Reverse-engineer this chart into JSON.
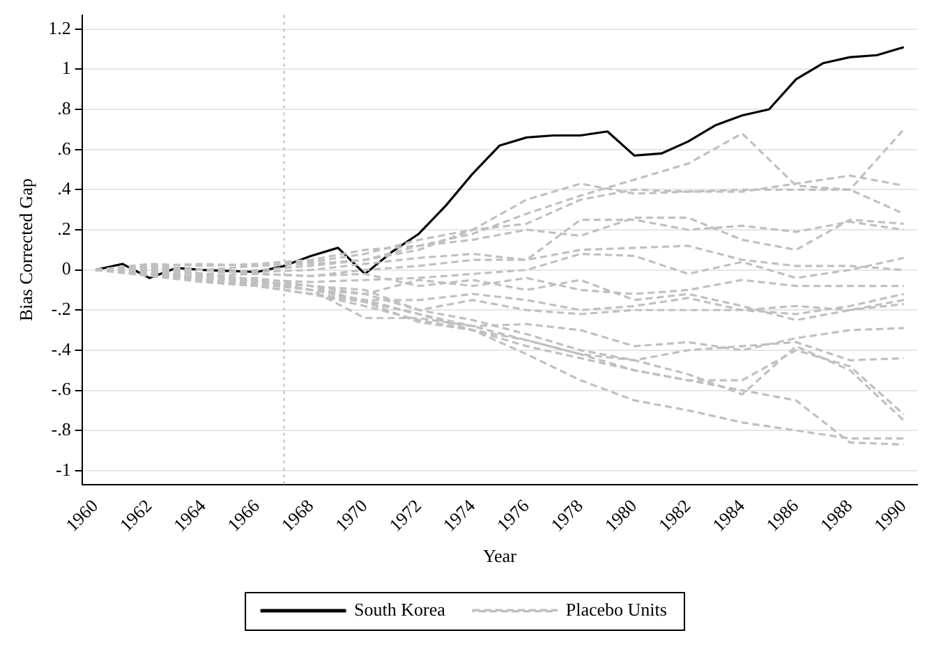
{
  "chart_data": {
    "type": "line",
    "xlabel": "Year",
    "ylabel": "Bias Corrected Gap",
    "xlim": [
      1959.5,
      1990.5
    ],
    "xticks": [
      1960,
      1962,
      1964,
      1966,
      1968,
      1970,
      1972,
      1974,
      1976,
      1978,
      1980,
      1982,
      1984,
      1986,
      1988,
      1990
    ],
    "ylim": [
      -1.07,
      1.27
    ],
    "yticks": [
      {
        "value": -1,
        "label": "-1"
      },
      {
        "value": -0.8,
        "label": "-.8"
      },
      {
        "value": -0.6,
        "label": "-.6"
      },
      {
        "value": -0.4,
        "label": "-.4"
      },
      {
        "value": -0.2,
        "label": "-.2"
      },
      {
        "value": 0,
        "label": "0"
      },
      {
        "value": 0.2,
        "label": ".2"
      },
      {
        "value": 0.4,
        "label": ".4"
      },
      {
        "value": 0.6,
        "label": ".6"
      },
      {
        "value": 0.8,
        "label": ".8"
      },
      {
        "value": 1,
        "label": "1"
      },
      {
        "value": 1.2,
        "label": "1.2"
      }
    ],
    "grid": "y",
    "legend": "bottom",
    "marker": "none",
    "ref_lines": [
      {
        "axis": "x",
        "value": 1967,
        "label": null,
        "color": "#bbbbbb",
        "line_style": "dotted"
      }
    ],
    "series": [
      {
        "name": "South Korea",
        "color": "#000000",
        "line_style": "solid",
        "x": [
          1960,
          1961,
          1962,
          1963,
          1964,
          1965,
          1966,
          1967,
          1968,
          1969,
          1970,
          1971,
          1972,
          1973,
          1974,
          1975,
          1976,
          1977,
          1978,
          1979,
          1980,
          1981,
          1982,
          1983,
          1984,
          1985,
          1986,
          1987,
          1988,
          1989,
          1990
        ],
        "values": [
          0,
          0.03,
          -0.04,
          0.01,
          0,
          -0.005,
          -0.01,
          0.02,
          0.07,
          0.11,
          -0.02,
          0.09,
          0.18,
          0.32,
          0.48,
          0.62,
          0.66,
          0.67,
          0.67,
          0.69,
          0.57,
          0.58,
          0.64,
          0.72,
          0.77,
          0.8,
          0.95,
          1.03,
          1.06,
          1.07,
          1.11
        ]
      },
      {
        "name": "Placebo Units",
        "color": "#c0c0c0",
        "line_style": "dashed",
        "x": [
          1960,
          1962,
          1964,
          1966,
          1968,
          1970,
          1972,
          1974,
          1976,
          1978,
          1980,
          1982,
          1984,
          1986,
          1988,
          1990
        ],
        "values": [
          0,
          0.03,
          0.02,
          0.03,
          0.05,
          0.1,
          0.12,
          0.18,
          0.28,
          0.37,
          0.45,
          0.53,
          0.68,
          0.42,
          0.4,
          0.7
        ]
      },
      {
        "color": "#c0c0c0",
        "line_style": "dashed",
        "x": [
          1960,
          1962,
          1964,
          1966,
          1968,
          1970,
          1972,
          1974,
          1976,
          1978,
          1980,
          1982,
          1984,
          1986,
          1988,
          1990
        ],
        "values": [
          0,
          0.02,
          0.03,
          0.02,
          0.04,
          0.08,
          0.15,
          0.2,
          0.35,
          0.43,
          0.38,
          0.39,
          0.39,
          0.43,
          0.47,
          0.42
        ]
      },
      {
        "color": "#c0c0c0",
        "line_style": "dashed",
        "x": [
          1960,
          1962,
          1964,
          1966,
          1968,
          1970,
          1972,
          1974,
          1976,
          1978,
          1980,
          1982,
          1984,
          1986,
          1988,
          1990
        ],
        "values": [
          0,
          0.01,
          0,
          0.02,
          0.03,
          0.05,
          0.1,
          0.2,
          0.23,
          0.35,
          0.4,
          0.39,
          0.4,
          0.4,
          0.4,
          0.28
        ]
      },
      {
        "color": "#c0c0c0",
        "line_style": "dashed",
        "x": [
          1960,
          1962,
          1964,
          1966,
          1968,
          1970,
          1972,
          1974,
          1976,
          1978,
          1980,
          1982,
          1984,
          1986,
          1988,
          1990
        ],
        "values": [
          0,
          0,
          -0.02,
          0,
          0.02,
          0.05,
          0.12,
          0.15,
          0.2,
          0.17,
          0.26,
          0.26,
          0.15,
          0.1,
          0.25,
          0.23
        ]
      },
      {
        "color": "#c0c0c0",
        "line_style": "dashed",
        "x": [
          1960,
          1962,
          1964,
          1966,
          1968,
          1970,
          1972,
          1974,
          1976,
          1978,
          1980,
          1982,
          1984,
          1986,
          1988,
          1990
        ],
        "values": [
          0,
          0.02,
          0,
          -0.01,
          0,
          0.03,
          0.06,
          0.08,
          0.05,
          0.25,
          0.25,
          0.2,
          0.22,
          0.19,
          0.24,
          0.2
        ]
      },
      {
        "color": "#c0c0c0",
        "line_style": "dashed",
        "x": [
          1960,
          1962,
          1964,
          1966,
          1968,
          1970,
          1972,
          1974,
          1976,
          1978,
          1980,
          1982,
          1984,
          1986,
          1988,
          1990
        ],
        "values": [
          0,
          -0.01,
          -0.03,
          -0.02,
          -0.03,
          0,
          0.02,
          0.05,
          0.05,
          0.1,
          0.11,
          0.12,
          0.05,
          0.02,
          0.02,
          0
        ]
      },
      {
        "color": "#c0c0c0",
        "line_style": "dashed",
        "x": [
          1960,
          1962,
          1964,
          1966,
          1968,
          1970,
          1972,
          1974,
          1976,
          1978,
          1980,
          1982,
          1984,
          1986,
          1988,
          1990
        ],
        "values": [
          0,
          0.01,
          -0.02,
          -0.05,
          -0.06,
          -0.05,
          -0.04,
          -0.02,
          0,
          0.08,
          0.07,
          -0.02,
          0.04,
          -0.04,
          0,
          0.06
        ]
      },
      {
        "color": "#c0c0c0",
        "line_style": "dashed",
        "x": [
          1960,
          1962,
          1964,
          1966,
          1968,
          1970,
          1972,
          1974,
          1976,
          1978,
          1980,
          1982,
          1984,
          1986,
          1988,
          1990
        ],
        "values": [
          0,
          -0.02,
          -0.03,
          -0.06,
          -0.1,
          -0.12,
          -0.05,
          -0.08,
          -0.04,
          -0.1,
          -0.12,
          -0.1,
          -0.05,
          -0.08,
          -0.08,
          -0.08
        ]
      },
      {
        "color": "#c0c0c0",
        "line_style": "dashed",
        "x": [
          1960,
          1962,
          1964,
          1966,
          1968,
          1970,
          1972,
          1974,
          1976,
          1978,
          1980,
          1982,
          1984,
          1986,
          1988,
          1990
        ],
        "values": [
          0,
          0,
          -0.05,
          -0.08,
          -0.12,
          -0.15,
          -0.15,
          -0.12,
          -0.15,
          -0.2,
          -0.18,
          -0.14,
          -0.2,
          -0.22,
          -0.18,
          -0.12
        ]
      },
      {
        "color": "#c0c0c0",
        "line_style": "dashed",
        "x": [
          1960,
          1962,
          1964,
          1966,
          1968,
          1970,
          1972,
          1974,
          1976,
          1978,
          1980,
          1982,
          1984,
          1986,
          1988,
          1990
        ],
        "values": [
          0,
          -0.02,
          -0.05,
          -0.04,
          -0.08,
          -0.1,
          -0.2,
          -0.15,
          -0.2,
          -0.22,
          -0.2,
          -0.2,
          -0.2,
          -0.18,
          -0.2,
          -0.17
        ]
      },
      {
        "color": "#c0c0c0",
        "line_style": "dashed",
        "x": [
          1960,
          1962,
          1964,
          1966,
          1968,
          1970,
          1972,
          1974,
          1976,
          1978,
          1980,
          1982,
          1984,
          1986,
          1988,
          1990
        ],
        "values": [
          0,
          -0.01,
          -0.04,
          -0.06,
          -0.08,
          -0.16,
          -0.22,
          -0.28,
          -0.27,
          -0.3,
          -0.38,
          -0.36,
          -0.4,
          -0.34,
          -0.3,
          -0.29
        ]
      },
      {
        "color": "#c0c0c0",
        "line_style": "dashed",
        "x": [
          1960,
          1962,
          1964,
          1966,
          1968,
          1970,
          1972,
          1974,
          1976,
          1978,
          1980,
          1982,
          1984,
          1986,
          1988,
          1990
        ],
        "values": [
          0,
          0.02,
          -0.02,
          -0.05,
          -0.1,
          -0.24,
          -0.24,
          -0.28,
          -0.35,
          -0.42,
          -0.45,
          -0.4,
          -0.38,
          -0.36,
          -0.45,
          -0.44
        ]
      },
      {
        "color": "#c0c0c0",
        "line_style": "dashed",
        "x": [
          1960,
          1962,
          1964,
          1966,
          1968,
          1970,
          1972,
          1974,
          1976,
          1978,
          1980,
          1982,
          1984,
          1986,
          1988,
          1990
        ],
        "values": [
          0,
          -0.03,
          -0.06,
          -0.08,
          -0.12,
          -0.18,
          -0.25,
          -0.3,
          -0.38,
          -0.44,
          -0.5,
          -0.55,
          -0.55,
          -0.4,
          -0.48,
          -0.72
        ]
      },
      {
        "color": "#c0c0c0",
        "line_style": "dashed",
        "x": [
          1960,
          1962,
          1964,
          1966,
          1968,
          1970,
          1972,
          1974,
          1976,
          1978,
          1980,
          1982,
          1984,
          1986,
          1988,
          1990
        ],
        "values": [
          0,
          -0.02,
          -0.04,
          -0.06,
          -0.08,
          -0.12,
          -0.2,
          -0.25,
          -0.32,
          -0.4,
          -0.45,
          -0.52,
          -0.62,
          -0.38,
          -0.5,
          -0.75
        ]
      },
      {
        "color": "#c0c0c0",
        "line_style": "dashed",
        "x": [
          1960,
          1962,
          1964,
          1966,
          1968,
          1970,
          1972,
          1974,
          1976,
          1978,
          1980,
          1982,
          1984,
          1986,
          1988,
          1990
        ],
        "values": [
          0,
          -0.01,
          -0.05,
          -0.07,
          -0.1,
          -0.15,
          -0.22,
          -0.3,
          -0.42,
          -0.55,
          -0.65,
          -0.7,
          -0.76,
          -0.8,
          -0.84,
          -0.84
        ]
      },
      {
        "color": "#c0c0c0",
        "line_style": "dashed",
        "x": [
          1960,
          1962,
          1964,
          1966,
          1968,
          1970,
          1972,
          1974,
          1976,
          1978,
          1980,
          1982,
          1984,
          1986,
          1988,
          1990
        ],
        "values": [
          0,
          -0.02,
          -0.06,
          -0.08,
          -0.12,
          -0.16,
          -0.26,
          -0.3,
          -0.35,
          -0.42,
          -0.5,
          -0.55,
          -0.6,
          -0.65,
          -0.86,
          -0.87
        ]
      },
      {
        "color": "#c0c0c0",
        "line_style": "dashed",
        "x": [
          1960,
          1962,
          1964,
          1966,
          1968,
          1970,
          1972,
          1974,
          1976,
          1978,
          1980,
          1982,
          1984,
          1986,
          1988,
          1990
        ],
        "values": [
          0,
          0.01,
          0,
          -0.02,
          -0.03,
          -0.02,
          -0.08,
          -0.05,
          -0.1,
          -0.05,
          -0.15,
          -0.12,
          -0.18,
          -0.25,
          -0.2,
          -0.15
        ]
      }
    ]
  }
}
